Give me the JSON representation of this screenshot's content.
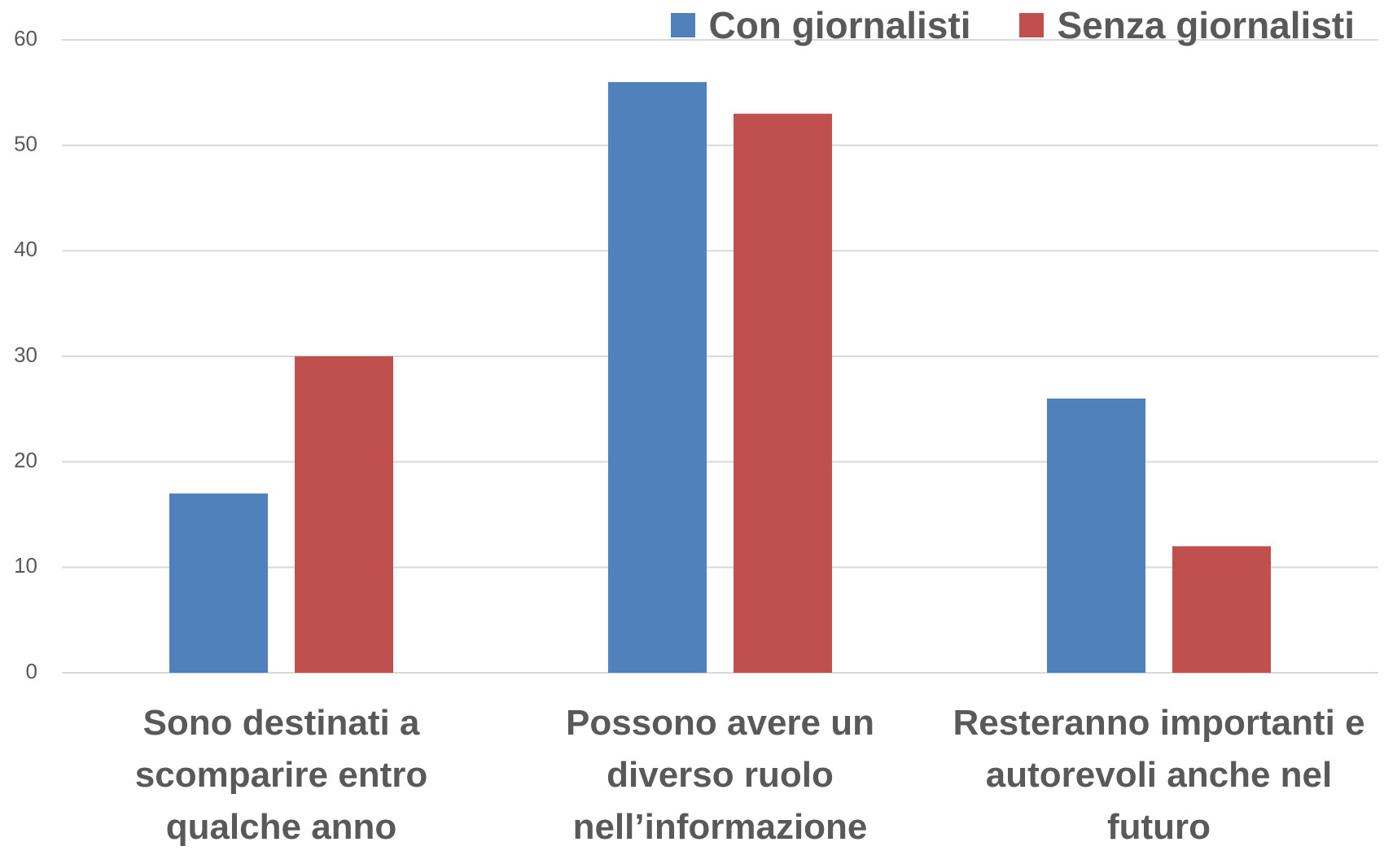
{
  "chart_data": {
    "type": "bar",
    "categories": [
      "Sono destinati a scomparire entro qualche anno",
      "Possono avere un diverso ruolo nell’informazione",
      "Resteranno importanti e autorevoli anche nel futuro"
    ],
    "series": [
      {
        "name": "Con giornalisti",
        "color": "#4f81bd",
        "values": [
          17,
          56,
          26
        ]
      },
      {
        "name": "Senza giornalisti",
        "color": "#c0504d",
        "values": [
          30,
          53,
          12
        ]
      }
    ],
    "ylim": [
      0,
      60
    ],
    "yticks": [
      0,
      10,
      20,
      30,
      40,
      50,
      60
    ],
    "grid": true,
    "legend": "top-right"
  }
}
